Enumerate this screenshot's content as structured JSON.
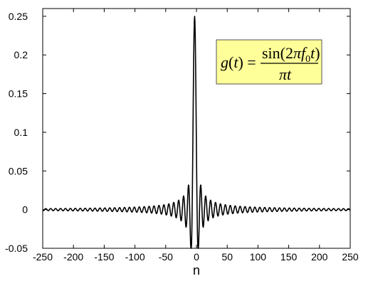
{
  "chart_data": {
    "type": "line",
    "title": "",
    "xlabel": "n",
    "ylabel": "",
    "xlim": [
      -250,
      250
    ],
    "ylim": [
      -0.05,
      0.26
    ],
    "xticks": [
      -250,
      -200,
      -150,
      -100,
      -50,
      0,
      50,
      100,
      150,
      200,
      250
    ],
    "yticks": [
      {
        "value": -0.05,
        "label": "-0.05"
      },
      {
        "value": 0,
        "label": "0"
      },
      {
        "value": 0.05,
        "label": "0.05"
      },
      {
        "value": 0.1,
        "label": "0.1"
      },
      {
        "value": 0.15,
        "label": "0.15"
      },
      {
        "value": 0.2,
        "label": "0.2"
      },
      {
        "value": 0.25,
        "label": "0.25"
      }
    ],
    "grid": false,
    "series": [
      {
        "function": "sinc",
        "f0": 0.125,
        "center": -3,
        "n_range": [
          -250,
          250
        ],
        "peak_value": 0.25,
        "color": "#000000"
      }
    ],
    "annotation": {
      "formula": "g(t) = sin(2πf0t) / πt",
      "background": "#ffff99",
      "border": "#555555"
    }
  },
  "colors": {
    "line": "#000000",
    "frame": "#000000",
    "box_fill": "#ffff99"
  }
}
